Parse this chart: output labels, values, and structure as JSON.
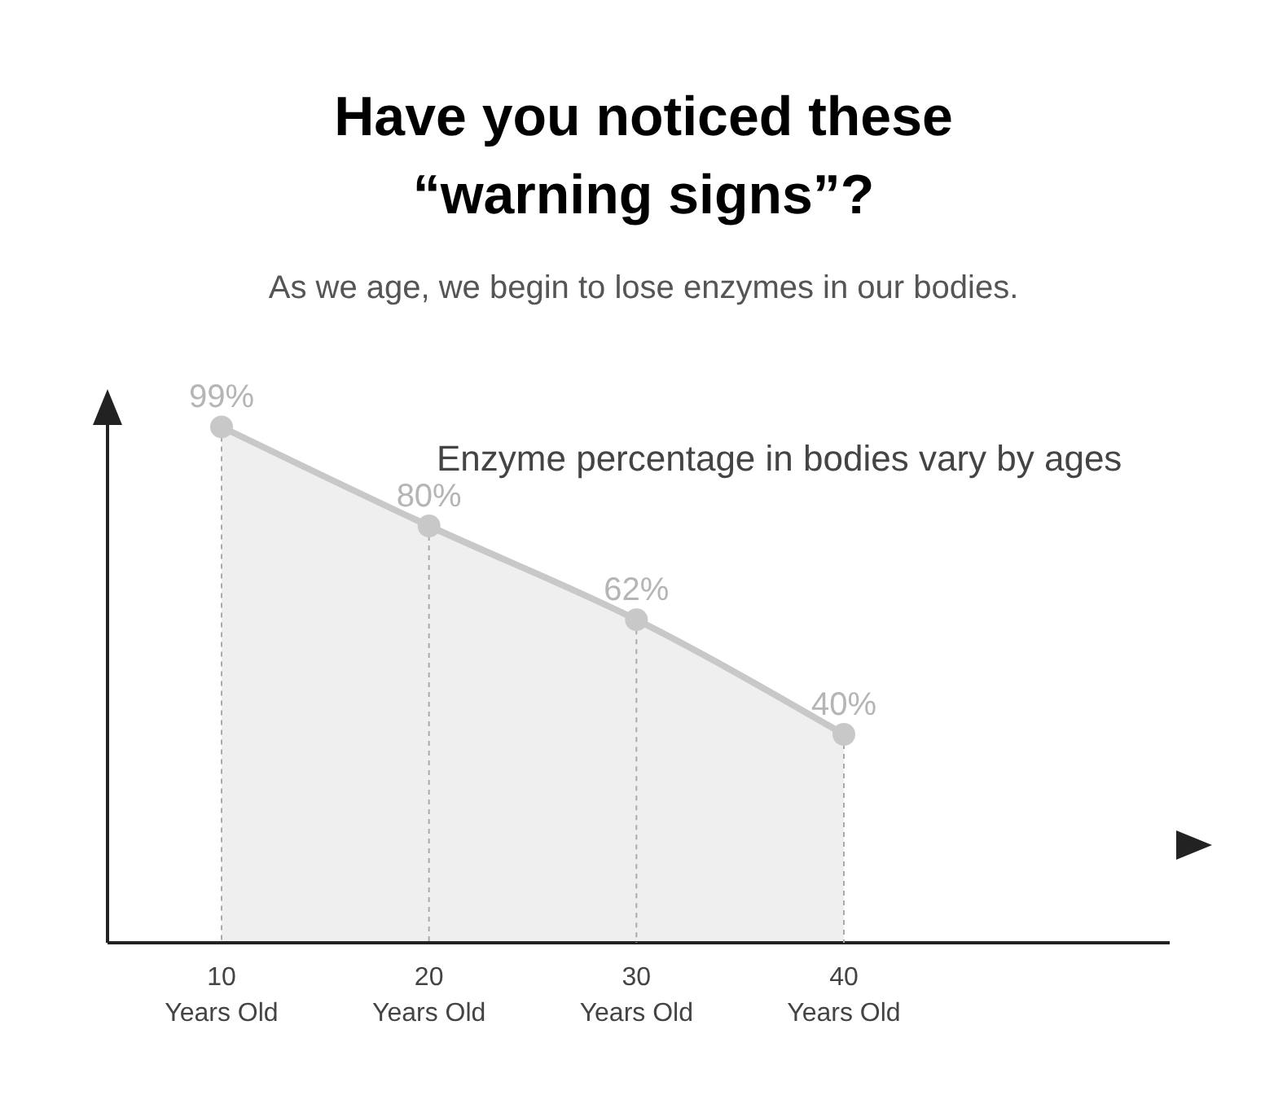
{
  "chart_data": {
    "type": "area",
    "title": "Have you noticed these\n“warning signs”?",
    "subtitle": "As we age, we begin to lose enzymes in our bodies.",
    "annotations": [
      "Enzyme percentage in bodies vary by ages"
    ],
    "categories": [
      "10 Years Old",
      "20 Years Old",
      "30 Years Old",
      "40 Years Old"
    ],
    "series": [
      {
        "color": "#c8c8c8",
        "values": [
          99,
          80,
          62,
          40
        ],
        "value_labels": [
          "99%",
          "80%",
          "62%",
          "40%"
        ]
      }
    ],
    "marker": "circle",
    "grid": "x",
    "tick_labels": "x"
  }
}
